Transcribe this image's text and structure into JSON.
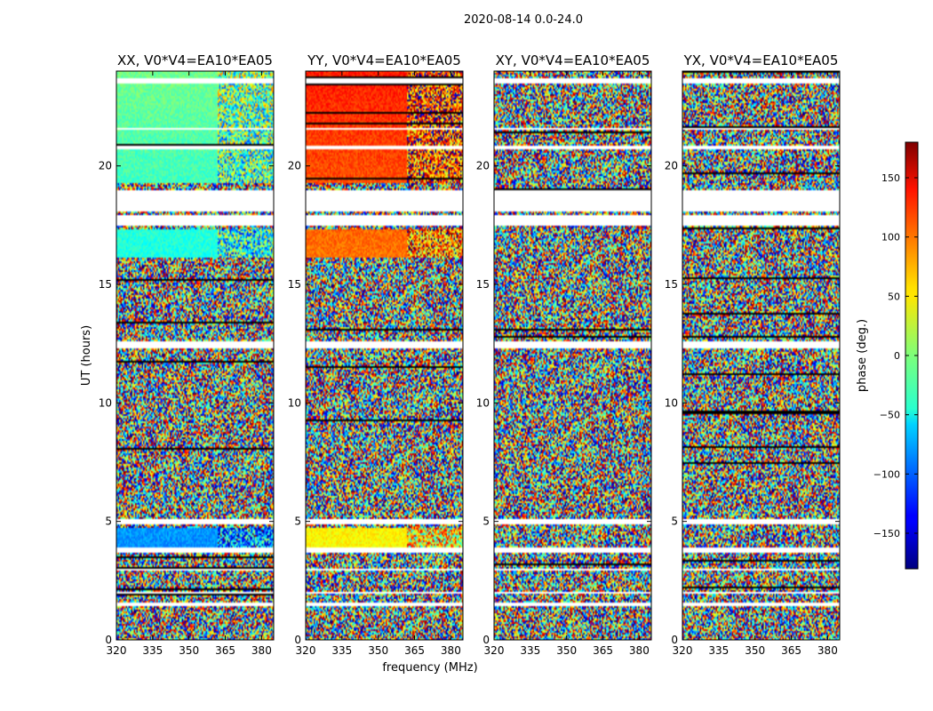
{
  "chart_data": {
    "type": "heatmap",
    "suptitle": "2020-08-14 0.0-24.0",
    "xlabel": "frequency (MHz)",
    "ylabel": "UT (hours)",
    "xlim": [
      320,
      385
    ],
    "ylim": [
      0,
      24
    ],
    "xticks": [
      "320",
      "335",
      "350",
      "365",
      "380"
    ],
    "xtick_values": [
      320,
      335,
      350,
      365,
      380
    ],
    "yticks": [
      "0",
      "5",
      "10",
      "15",
      "20"
    ],
    "ytick_values": [
      0,
      5,
      10,
      15,
      20
    ],
    "colorbar": {
      "label": "phase (deg.)",
      "range": [
        -180,
        180
      ],
      "ticks": [
        "−150",
        "−100",
        "−50",
        "0",
        "50",
        "100",
        "150"
      ],
      "tick_values": [
        -150,
        -100,
        -50,
        0,
        50,
        100,
        150
      ],
      "colormap": "jet"
    },
    "panels": [
      {
        "title": "XX, V0*V4=EA10*EA05",
        "coherent_phase_deg": -20
      },
      {
        "title": "YY, V0*V4=EA10*EA05",
        "coherent_phase_deg": 110
      },
      {
        "title": "XY, V0*V4=EA10*EA05",
        "coherent_phase_deg": null
      },
      {
        "title": "YX, V0*V4=EA10*EA05",
        "coherent_phase_deg": null
      }
    ],
    "flagged_ut_bands_hours": [
      [
        18.1,
        19.0
      ],
      [
        17.5,
        17.9
      ],
      [
        12.3,
        12.6
      ],
      [
        4.9,
        5.1
      ],
      [
        3.7,
        3.9
      ],
      [
        2.9,
        3.0
      ],
      [
        1.95,
        2.05
      ],
      [
        1.45,
        1.55
      ],
      [
        23.5,
        23.7
      ],
      [
        21.5,
        21.6
      ],
      [
        20.7,
        20.85
      ]
    ],
    "coherent_ut_ranges_hours": [
      [
        19.3,
        24
      ],
      [
        16.1,
        17.3
      ],
      [
        3.8,
        4.7
      ]
    ]
  }
}
